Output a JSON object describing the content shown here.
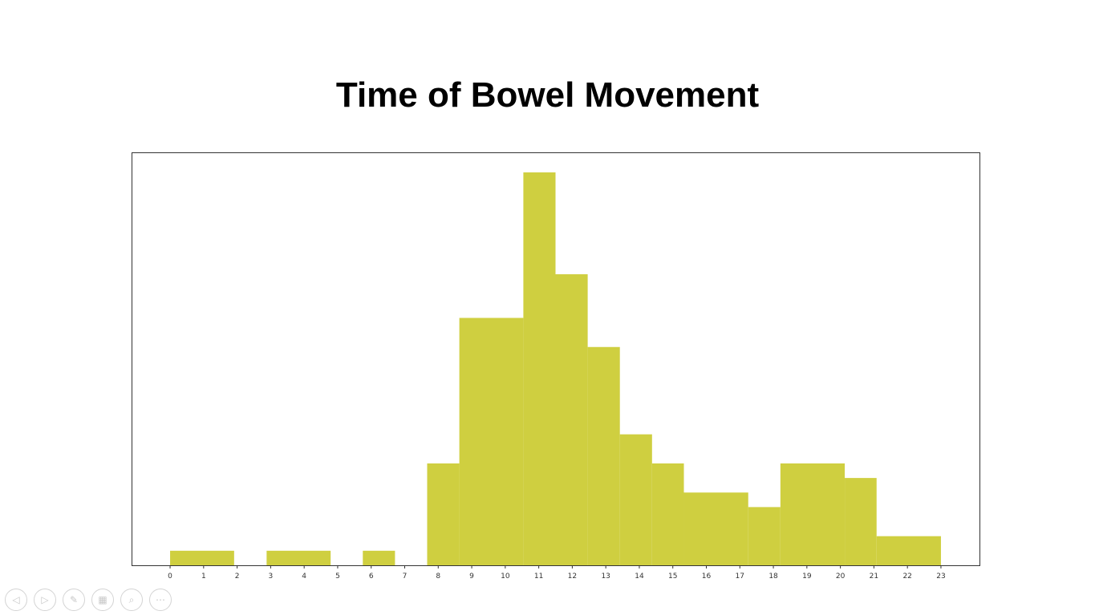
{
  "slide": {
    "title": "Time of Bowel Movement"
  },
  "chart_data": {
    "type": "bar",
    "title": "Time of Bowel Movement",
    "xlabel": "",
    "ylabel": "",
    "color": "#cfcf40",
    "bins": [
      {
        "start": 0,
        "end": 1.91,
        "value": 1
      },
      {
        "start": 1.91,
        "end": 2.88,
        "value": 0
      },
      {
        "start": 2.88,
        "end": 4.79,
        "value": 1
      },
      {
        "start": 4.79,
        "end": 5.75,
        "value": 0
      },
      {
        "start": 5.75,
        "end": 6.71,
        "value": 1
      },
      {
        "start": 6.71,
        "end": 7.67,
        "value": 0
      },
      {
        "start": 7.67,
        "end": 8.63,
        "value": 7
      },
      {
        "start": 8.63,
        "end": 10.54,
        "value": 17
      },
      {
        "start": 10.54,
        "end": 11.5,
        "value": 27
      },
      {
        "start": 11.5,
        "end": 12.46,
        "value": 20
      },
      {
        "start": 12.46,
        "end": 13.42,
        "value": 15
      },
      {
        "start": 13.42,
        "end": 14.38,
        "value": 9
      },
      {
        "start": 14.38,
        "end": 15.33,
        "value": 7
      },
      {
        "start": 15.33,
        "end": 17.25,
        "value": 5
      },
      {
        "start": 17.25,
        "end": 18.21,
        "value": 4
      },
      {
        "start": 18.21,
        "end": 20.13,
        "value": 7
      },
      {
        "start": 20.13,
        "end": 21.08,
        "value": 6
      },
      {
        "start": 21.08,
        "end": 23,
        "value": 2
      }
    ],
    "xticks": [
      "0",
      "1",
      "2",
      "3",
      "4",
      "5",
      "6",
      "7",
      "8",
      "9",
      "10",
      "11",
      "12",
      "13",
      "14",
      "15",
      "16",
      "17",
      "18",
      "19",
      "20",
      "21",
      "22",
      "23"
    ],
    "xlim": [
      -1.15,
      24.15
    ],
    "ylim": [
      0,
      27
    ],
    "grid": false,
    "yaxis_labels_visible": false
  },
  "toolbar": {
    "buttons": [
      {
        "name": "previous-slide-button",
        "icon": "arrow-left-icon",
        "glyph": "◁"
      },
      {
        "name": "next-slide-button",
        "icon": "arrow-right-icon",
        "glyph": "▷"
      },
      {
        "name": "pen-tool-button",
        "icon": "pen-icon",
        "glyph": "✎"
      },
      {
        "name": "see-all-slides-button",
        "icon": "slides-grid-icon",
        "glyph": "▦"
      },
      {
        "name": "zoom-button",
        "icon": "magnifier-icon",
        "glyph": "⌕"
      },
      {
        "name": "more-options-button",
        "icon": "more-icon",
        "glyph": "⋯"
      }
    ]
  }
}
